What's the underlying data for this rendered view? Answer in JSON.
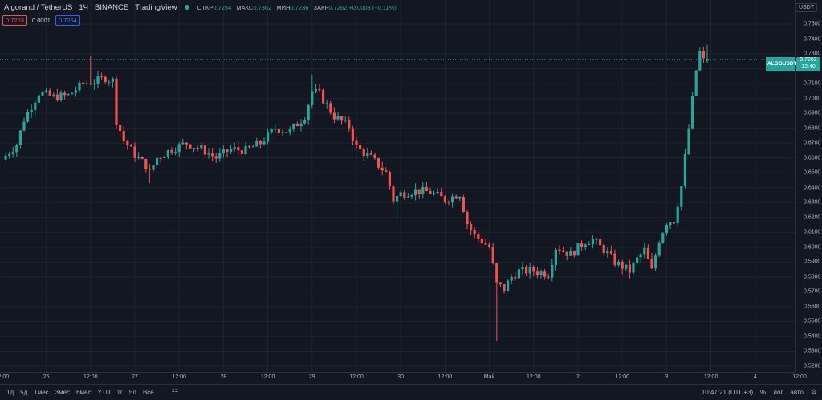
{
  "header": {
    "symbol": "Algorand / TetherUS",
    "interval": "1Ч",
    "exchange": "BINANCE",
    "source": "TradingView",
    "ohlc": [
      {
        "key": "ОТКР",
        "value": "0.7254"
      },
      {
        "key": "МАКС",
        "value": "0.7362"
      },
      {
        "key": "МИН",
        "value": "0.7236"
      },
      {
        "key": "ЗАКР",
        "value": "0.7262 +0.0008 (+0.11%)"
      }
    ]
  },
  "quotes": {
    "sell": "0.7263",
    "spread": "0.0001",
    "buy": "0.7264"
  },
  "axis_currency": "USDT",
  "last_price": {
    "symbol": "ALGOUSDT",
    "price": "0.7262",
    "countdown": "12:40"
  },
  "colors": {
    "up": "#26a69a",
    "down": "#ef5350",
    "background": "#131722",
    "grid": "#1f2330"
  },
  "bottombar": {
    "ranges": [
      "1д",
      "5д",
      "1мес",
      "3мес",
      "6мес",
      "YTD",
      "1г",
      "5л",
      "Все"
    ],
    "time": "10:47:21 (UTC+3)",
    "percent": "%",
    "log": "лог",
    "auto": "авто"
  },
  "chart_data": {
    "type": "candlestick",
    "ylim": [
      0.5162,
      0.7662
    ],
    "y_ticks": [
      "0.7500",
      "0.7400",
      "0.7300",
      "0.7200",
      "0.7100",
      "0.7000",
      "0.6900",
      "0.6800",
      "0.6700",
      "0.6600",
      "0.6500",
      "0.6400",
      "0.6300",
      "0.6200",
      "0.6100",
      "0.6000",
      "0.5900",
      "0.5800",
      "0.5700",
      "0.5600",
      "0.5500",
      "0.5400",
      "0.5300",
      "0.5200"
    ],
    "x_labels": [
      "12:00",
      "26",
      "12:00",
      "27",
      "12:00",
      "28",
      "12:00",
      "29",
      "12:00",
      "30",
      "12:00",
      "Май",
      "12:00",
      "2",
      "12:00",
      "3",
      "12:00",
      "4",
      "12:00"
    ],
    "x_label_hours": [
      -1,
      11,
      23,
      35,
      47,
      59,
      71,
      83,
      95,
      107,
      119,
      131,
      143,
      155,
      167,
      179,
      191,
      203,
      215
    ],
    "keypoints": [
      [
        0,
        0.659
      ],
      [
        4,
        0.669
      ],
      [
        6,
        0.686
      ],
      [
        10,
        0.704
      ],
      [
        14,
        0.701
      ],
      [
        18,
        0.702
      ],
      [
        22,
        0.71
      ],
      [
        26,
        0.712
      ],
      [
        28,
        0.714
      ],
      [
        30,
        0.712
      ],
      [
        31,
        0.685
      ],
      [
        33,
        0.672
      ],
      [
        36,
        0.662
      ],
      [
        39,
        0.655
      ],
      [
        40,
        0.65
      ],
      [
        42,
        0.66
      ],
      [
        46,
        0.666
      ],
      [
        50,
        0.67
      ],
      [
        54,
        0.666
      ],
      [
        58,
        0.66
      ],
      [
        62,
        0.666
      ],
      [
        66,
        0.665
      ],
      [
        70,
        0.67
      ],
      [
        74,
        0.68
      ],
      [
        78,
        0.678
      ],
      [
        82,
        0.688
      ],
      [
        84,
        0.705
      ],
      [
        86,
        0.703
      ],
      [
        90,
        0.688
      ],
      [
        94,
        0.681
      ],
      [
        96,
        0.667
      ],
      [
        100,
        0.66
      ],
      [
        104,
        0.65
      ],
      [
        106,
        0.632
      ],
      [
        108,
        0.636
      ],
      [
        112,
        0.638
      ],
      [
        116,
        0.637
      ],
      [
        120,
        0.632
      ],
      [
        124,
        0.636
      ],
      [
        126,
        0.616
      ],
      [
        128,
        0.608
      ],
      [
        132,
        0.6
      ],
      [
        134,
        0.575
      ],
      [
        136,
        0.572
      ],
      [
        138,
        0.58
      ],
      [
        140,
        0.584
      ],
      [
        144,
        0.584
      ],
      [
        148,
        0.582
      ],
      [
        150,
        0.6
      ],
      [
        154,
        0.595
      ],
      [
        158,
        0.604
      ],
      [
        160,
        0.605
      ],
      [
        164,
        0.596
      ],
      [
        166,
        0.59
      ],
      [
        170,
        0.584
      ],
      [
        172,
        0.592
      ],
      [
        174,
        0.598
      ],
      [
        176,
        0.584
      ],
      [
        178,
        0.605
      ],
      [
        180,
        0.617
      ],
      [
        182,
        0.618
      ],
      [
        184,
        0.641
      ],
      [
        186,
        0.68
      ],
      [
        188,
        0.719
      ],
      [
        189,
        0.731
      ],
      [
        190,
        0.7254
      ]
    ],
    "last_candle": {
      "open": 0.7254,
      "high": 0.7362,
      "low": 0.7236,
      "close": 0.7262
    }
  }
}
